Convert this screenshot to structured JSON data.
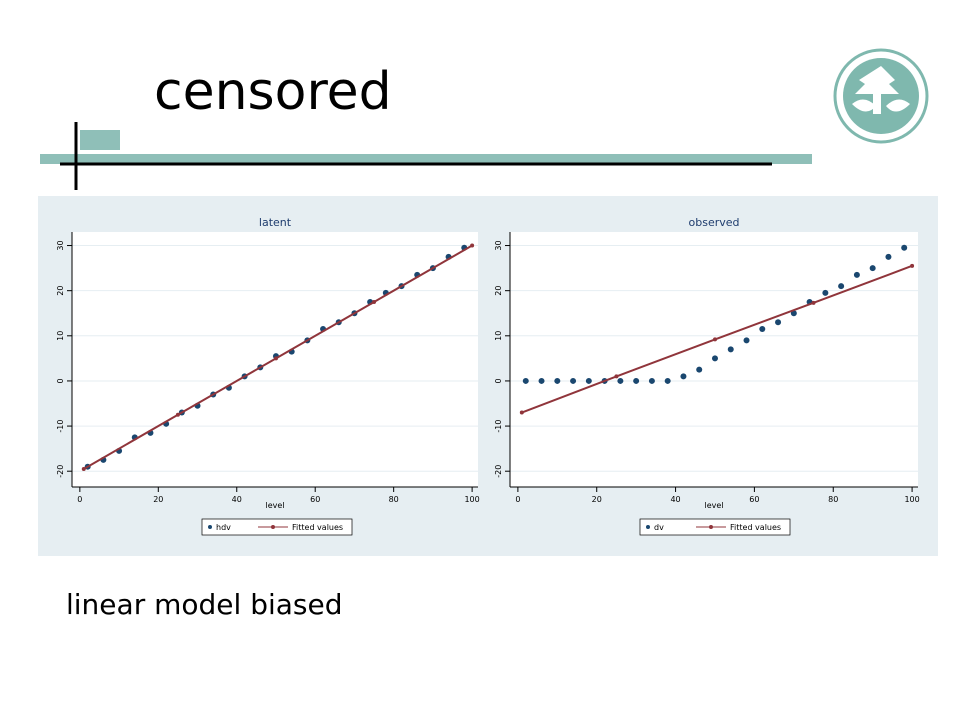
{
  "title": "censored",
  "body": "linear model biased",
  "chart_data": [
    {
      "type": "scatter",
      "title": "latent",
      "xlabel": "level",
      "xlim": [
        -2,
        101.5
      ],
      "ylim": [
        -23.5,
        33
      ],
      "xticks": [
        0,
        20,
        40,
        60,
        80,
        100
      ],
      "yticks": [
        -20,
        -10,
        0,
        10,
        20,
        30
      ],
      "grid": true,
      "series": [
        {
          "name": "hdv",
          "kind": "scatter",
          "color": "#1a476f",
          "x": [
            2,
            6,
            10,
            14,
            18,
            22,
            26,
            30,
            34,
            38,
            42,
            46,
            50,
            54,
            58,
            62,
            66,
            70,
            74,
            78,
            82,
            86,
            90,
            94,
            98
          ],
          "values": [
            -19,
            -17.5,
            -15.5,
            -12.5,
            -11.5,
            -9.5,
            -7,
            -5.5,
            -3,
            -1.5,
            1,
            3,
            5.5,
            6.5,
            9,
            11.5,
            13,
            15,
            17.5,
            19.5,
            21,
            23.5,
            25,
            27.5,
            29.5
          ]
        },
        {
          "name": "Fitted values",
          "kind": "line",
          "color": "#90353b",
          "x": [
            1,
            25,
            50,
            75,
            100
          ],
          "values": [
            -19.5,
            -7.5,
            5,
            17.5,
            30
          ]
        }
      ]
    },
    {
      "type": "scatter",
      "title": "observed",
      "xlabel": "level",
      "xlim": [
        -2,
        101.5
      ],
      "ylim": [
        -23.5,
        33
      ],
      "xticks": [
        0,
        20,
        40,
        60,
        80,
        100
      ],
      "yticks": [
        -20,
        -10,
        0,
        10,
        20,
        30
      ],
      "grid": true,
      "series": [
        {
          "name": "dv",
          "kind": "scatter",
          "color": "#1a476f",
          "x": [
            2,
            6,
            10,
            14,
            18,
            22,
            26,
            30,
            34,
            38,
            42,
            46,
            50,
            54,
            58,
            62,
            66,
            70,
            74,
            78,
            82,
            86,
            90,
            94,
            98
          ],
          "values": [
            0,
            0,
            0,
            0,
            0,
            0,
            0,
            0,
            0,
            0,
            1,
            2.5,
            5,
            7,
            9,
            11.5,
            13,
            15,
            17.5,
            19.5,
            21,
            23.5,
            25,
            27.5,
            29.5
          ]
        },
        {
          "name": "Fitted values",
          "kind": "line",
          "color": "#90353b",
          "x": [
            1,
            25,
            50,
            75,
            100
          ],
          "values": [
            -7,
            1,
            9.2,
            17.3,
            25.5
          ]
        }
      ]
    }
  ]
}
